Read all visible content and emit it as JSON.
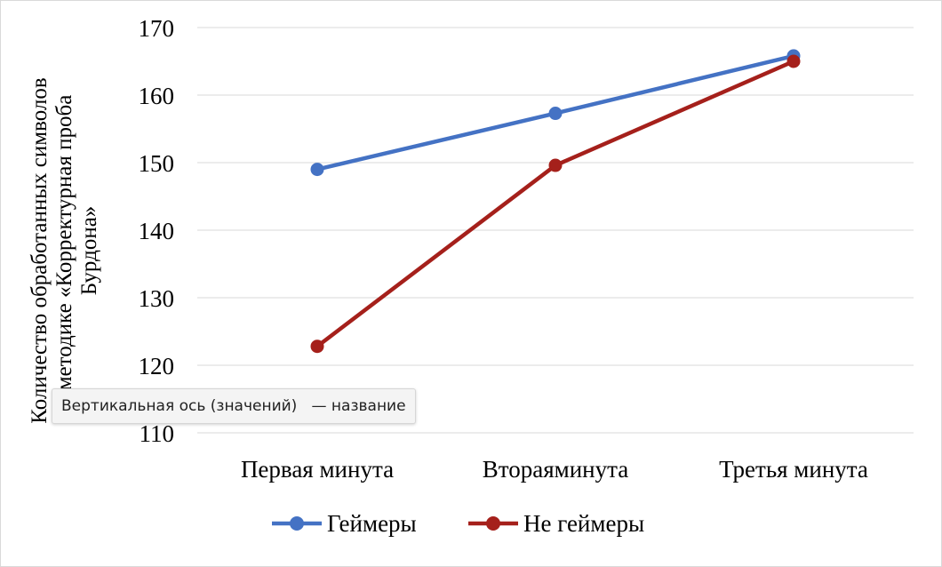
{
  "chart_data": {
    "type": "line",
    "categories": [
      "Первая минута",
      "Втораяминута",
      "Третья минута"
    ],
    "series": [
      {
        "name": "Геймеры",
        "values": [
          149,
          157.3,
          165.8
        ],
        "color": "#4472C4"
      },
      {
        "name": "Не геймеры",
        "values": [
          122.8,
          149.6,
          165
        ],
        "color": "#A5201B"
      }
    ],
    "ylabel_lines": [
      "Количество обработанных символов",
      "в методике «Корректурная проба",
      "Бурдона»"
    ],
    "ylim": [
      110,
      170
    ],
    "yticks": [
      110,
      120,
      130,
      140,
      150,
      160,
      170
    ],
    "grid": true,
    "legend_position": "bottom"
  },
  "tooltip": {
    "text": "Вертикальная ось (значений)   — название"
  }
}
